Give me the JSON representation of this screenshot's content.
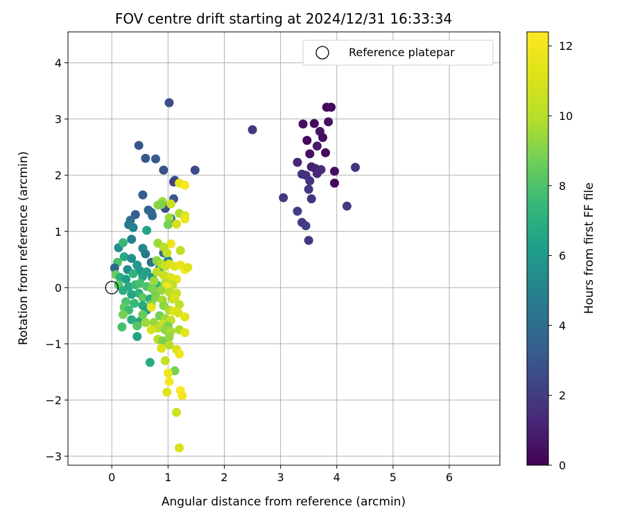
{
  "chart_data": {
    "type": "scatter",
    "title": "FOV centre drift starting at 2024/12/31 16:33:34",
    "xlabel": "Angular distance from reference (arcmin)",
    "ylabel": "Rotation from reference (arcmin)",
    "xlim": [
      -0.78,
      6.9
    ],
    "ylim": [
      -3.16,
      4.55
    ],
    "x_ticks": [
      0,
      1,
      2,
      3,
      4,
      5,
      6
    ],
    "y_ticks": [
      -3,
      -2,
      -1,
      0,
      1,
      2,
      3,
      4
    ],
    "grid": true,
    "legend": {
      "label": "Reference platepar",
      "position": "top-right"
    },
    "reference_point": {
      "x": 0,
      "y": 0
    },
    "colorbar": {
      "label": "Hours from first FF file",
      "colormap": "viridis",
      "range": [
        0,
        12.4
      ],
      "ticks": [
        0,
        2,
        4,
        6,
        8,
        10,
        12
      ]
    },
    "points": [
      [
        3.82,
        3.21,
        0.2
      ],
      [
        3.9,
        3.21,
        0.3
      ],
      [
        3.4,
        2.91,
        0.4
      ],
      [
        3.6,
        2.92,
        0.3
      ],
      [
        3.85,
        2.95,
        0.5
      ],
      [
        3.7,
        2.78,
        0.6
      ],
      [
        3.75,
        2.67,
        0.4
      ],
      [
        3.47,
        2.62,
        0.2
      ],
      [
        3.65,
        2.52,
        0.8
      ],
      [
        3.8,
        2.4,
        0.3
      ],
      [
        3.52,
        2.38,
        0.5
      ],
      [
        3.3,
        2.23,
        1.2
      ],
      [
        3.55,
        2.15,
        0.9
      ],
      [
        3.62,
        2.12,
        1.1
      ],
      [
        3.72,
        2.1,
        1.4
      ],
      [
        3.65,
        2.03,
        1.3
      ],
      [
        3.38,
        2.02,
        1.6
      ],
      [
        3.45,
        2.0,
        1.5
      ],
      [
        3.52,
        1.9,
        1.7
      ],
      [
        3.5,
        1.75,
        1.8
      ],
      [
        3.96,
        2.07,
        0.4
      ],
      [
        3.96,
        1.86,
        0.1
      ],
      [
        4.33,
        2.14,
        1.7
      ],
      [
        4.18,
        1.45,
        1.9
      ],
      [
        3.55,
        1.58,
        1.6
      ],
      [
        3.05,
        1.6,
        1.8
      ],
      [
        3.3,
        1.36,
        2.0
      ],
      [
        3.38,
        1.16,
        1.9
      ],
      [
        3.45,
        1.1,
        2.1
      ],
      [
        3.5,
        0.84,
        1.8
      ],
      [
        2.5,
        2.81,
        1.8
      ],
      [
        1.02,
        3.29,
        2.6
      ],
      [
        1.48,
        2.09,
        2.5
      ],
      [
        0.48,
        2.53,
        3.0
      ],
      [
        0.6,
        2.3,
        3.1
      ],
      [
        0.78,
        2.29,
        3.2
      ],
      [
        0.92,
        2.09,
        2.8
      ],
      [
        1.12,
        1.91,
        3.0
      ],
      [
        1.1,
        1.88,
        2.0
      ],
      [
        0.55,
        1.65,
        3.3
      ],
      [
        1.1,
        1.58,
        2.9
      ],
      [
        0.95,
        1.41,
        2.7
      ],
      [
        0.42,
        1.3,
        3.4
      ],
      [
        0.65,
        1.38,
        3.5
      ],
      [
        0.7,
        1.34,
        3.6
      ],
      [
        0.72,
        1.28,
        3.7
      ],
      [
        1.05,
        1.23,
        3.8
      ],
      [
        0.33,
        1.2,
        4.0
      ],
      [
        0.3,
        1.12,
        4.5
      ],
      [
        0.38,
        1.07,
        5.0
      ],
      [
        0.62,
        1.02,
        6.5
      ],
      [
        0.35,
        0.86,
        4.8
      ],
      [
        0.12,
        0.71,
        5.5
      ],
      [
        0.2,
        0.8,
        7.5
      ],
      [
        0.55,
        0.7,
        5.2
      ],
      [
        0.6,
        0.6,
        4.5
      ],
      [
        0.92,
        0.62,
        4.0
      ],
      [
        0.22,
        0.55,
        6.8
      ],
      [
        0.35,
        0.52,
        5.5
      ],
      [
        0.1,
        0.45,
        8.0
      ],
      [
        1.0,
        0.48,
        5.0
      ],
      [
        0.7,
        0.45,
        4.2
      ],
      [
        0.45,
        0.4,
        6.0
      ],
      [
        0.05,
        0.35,
        3.8
      ],
      [
        0.28,
        0.32,
        5.5
      ],
      [
        0.5,
        0.3,
        6.0
      ],
      [
        0.62,
        0.28,
        6.5
      ],
      [
        0.85,
        0.35,
        5.8
      ],
      [
        0.07,
        0.23,
        8.5
      ],
      [
        0.15,
        0.18,
        7.0
      ],
      [
        0.25,
        0.15,
        6.2
      ],
      [
        0.38,
        0.25,
        7.2
      ],
      [
        0.55,
        0.2,
        6.4
      ],
      [
        0.72,
        0.18,
        5.8
      ],
      [
        0.92,
        0.22,
        6.2
      ],
      [
        0.12,
        0.05,
        8.2
      ],
      [
        0.3,
        0.02,
        6.8
      ],
      [
        0.42,
        0.05,
        7.5
      ],
      [
        0.5,
        0.08,
        7.8
      ],
      [
        0.62,
        0.02,
        8.1
      ],
      [
        0.8,
        0.05,
        7.4
      ],
      [
        0.2,
        -0.05,
        7.0
      ],
      [
        0.35,
        -0.12,
        6.6
      ],
      [
        0.48,
        -0.1,
        7.2
      ],
      [
        0.55,
        -0.18,
        8.3
      ],
      [
        0.68,
        -0.2,
        6.9
      ],
      [
        0.78,
        -0.12,
        8.6
      ],
      [
        0.25,
        -0.25,
        8.0
      ],
      [
        0.4,
        -0.28,
        7.5
      ],
      [
        0.55,
        -0.32,
        6.8
      ],
      [
        0.62,
        -0.4,
        6.0
      ],
      [
        0.7,
        -0.3,
        9.0
      ],
      [
        0.22,
        -0.35,
        8.4
      ],
      [
        0.3,
        -0.4,
        7.6
      ],
      [
        0.2,
        -0.48,
        8.8
      ],
      [
        0.35,
        -0.57,
        7.0
      ],
      [
        0.5,
        -0.6,
        6.4
      ],
      [
        0.55,
        -0.48,
        8.6
      ],
      [
        0.6,
        -0.62,
        9.5
      ],
      [
        0.18,
        -0.7,
        7.8
      ],
      [
        0.45,
        -0.68,
        8.2
      ],
      [
        0.45,
        -0.87,
        6.5
      ],
      [
        0.68,
        -1.33,
        6.8
      ],
      [
        0.82,
        1.47,
        9.2
      ],
      [
        0.9,
        1.53,
        9.6
      ],
      [
        0.88,
        1.48,
        9.0
      ],
      [
        1.05,
        1.49,
        10.5
      ],
      [
        1.2,
        1.32,
        9.8
      ],
      [
        1.3,
        1.28,
        11.0
      ],
      [
        1.3,
        1.22,
        11.8
      ],
      [
        1.02,
        1.24,
        9.5
      ],
      [
        1.0,
        1.12,
        8.8
      ],
      [
        1.15,
        1.13,
        11.0
      ],
      [
        1.2,
        1.86,
        11.5
      ],
      [
        1.3,
        1.82,
        12.2
      ],
      [
        1.05,
        0.78,
        11.8
      ],
      [
        0.82,
        0.79,
        9.5
      ],
      [
        0.92,
        0.72,
        10.0
      ],
      [
        0.98,
        0.62,
        10.4
      ],
      [
        1.22,
        0.66,
        10.2
      ],
      [
        0.8,
        0.48,
        9.2
      ],
      [
        0.88,
        0.42,
        9.8
      ],
      [
        0.95,
        0.38,
        10.6
      ],
      [
        1.02,
        0.42,
        10.9
      ],
      [
        1.12,
        0.38,
        11.3
      ],
      [
        1.22,
        0.4,
        11.6
      ],
      [
        1.3,
        0.32,
        12.0
      ],
      [
        1.35,
        0.36,
        11.2
      ],
      [
        0.8,
        0.28,
        10.2
      ],
      [
        0.92,
        0.22,
        10.7
      ],
      [
        1.05,
        0.18,
        11.1
      ],
      [
        1.15,
        0.15,
        11.4
      ],
      [
        0.75,
        0.12,
        9.5
      ],
      [
        0.95,
        0.08,
        9.9
      ],
      [
        1.08,
        0.05,
        10.3
      ],
      [
        0.98,
        0.02,
        12.0
      ],
      [
        0.72,
        -0.02,
        8.9
      ],
      [
        0.88,
        -0.05,
        9.4
      ],
      [
        1.02,
        -0.08,
        10.0
      ],
      [
        1.15,
        -0.1,
        10.5
      ],
      [
        0.78,
        -0.18,
        9.0
      ],
      [
        0.9,
        -0.22,
        9.7
      ],
      [
        1.08,
        -0.2,
        10.3
      ],
      [
        1.12,
        -0.18,
        11.0
      ],
      [
        0.7,
        -0.35,
        11.5
      ],
      [
        0.92,
        -0.32,
        9.2
      ],
      [
        1.2,
        -0.3,
        10.2
      ],
      [
        1.02,
        -0.4,
        9.8
      ],
      [
        1.1,
        -0.42,
        11.2
      ],
      [
        1.18,
        -0.45,
        10.9
      ],
      [
        1.3,
        -0.52,
        11.4
      ],
      [
        0.85,
        -0.5,
        8.8
      ],
      [
        0.95,
        -0.55,
        9.6
      ],
      [
        1.05,
        -0.58,
        10.4
      ],
      [
        0.75,
        -0.62,
        9.4
      ],
      [
        0.9,
        -0.65,
        10.5
      ],
      [
        1.0,
        -0.68,
        9.0
      ],
      [
        0.82,
        -0.72,
        10.0
      ],
      [
        0.7,
        -0.75,
        11.0
      ],
      [
        0.95,
        -0.75,
        9.2
      ],
      [
        1.05,
        -0.78,
        9.7
      ],
      [
        1.2,
        -0.75,
        9.8
      ],
      [
        1.3,
        -0.8,
        11.4
      ],
      [
        0.82,
        -0.92,
        10.1
      ],
      [
        0.9,
        -0.95,
        9.0
      ],
      [
        0.95,
        -1.0,
        8.8
      ],
      [
        1.02,
        -0.88,
        9.3
      ],
      [
        0.88,
        -1.08,
        11.2
      ],
      [
        1.02,
        -1.02,
        10.0
      ],
      [
        1.15,
        -1.1,
        11.0
      ],
      [
        1.2,
        -1.18,
        11.8
      ],
      [
        0.95,
        -1.3,
        10.4
      ],
      [
        1.12,
        -1.48,
        8.8
      ],
      [
        1.0,
        -1.52,
        11.8
      ],
      [
        1.02,
        -1.67,
        12.0
      ],
      [
        0.98,
        -1.86,
        11.3
      ],
      [
        1.22,
        -1.83,
        12.3
      ],
      [
        1.25,
        -1.92,
        12.0
      ],
      [
        1.15,
        -2.22,
        10.6
      ],
      [
        1.2,
        -2.85,
        11.0
      ]
    ]
  }
}
